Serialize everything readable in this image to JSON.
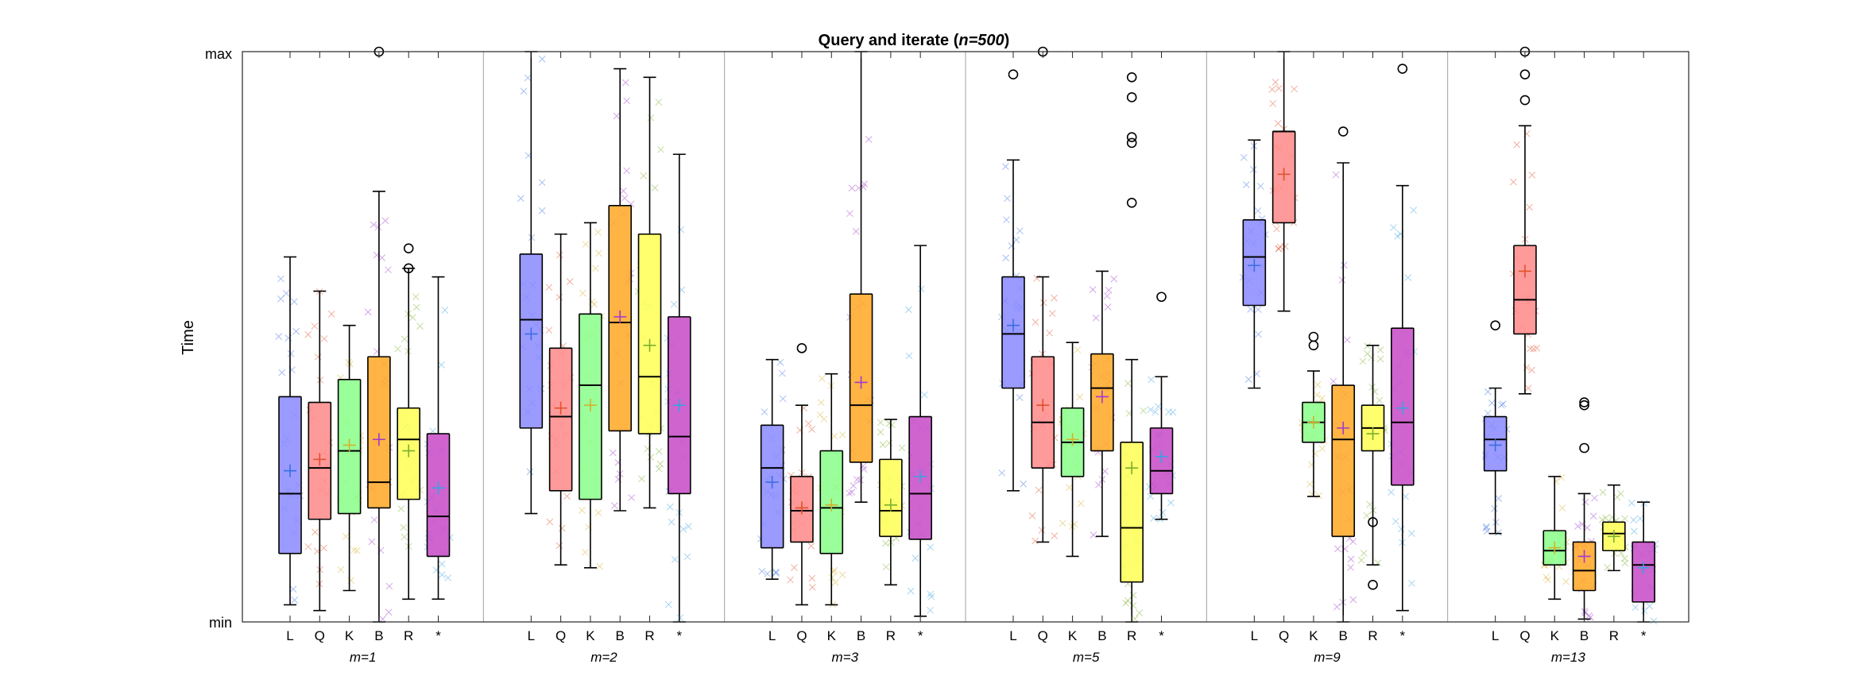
{
  "chart_data": {
    "type": "box",
    "title_prefix": "Query and iterate (",
    "title_italic": "n=500",
    "title_suffix": ")",
    "ylabel": "Time",
    "y_tick_labels": [
      "max",
      "min"
    ],
    "ylim": [
      0,
      1
    ],
    "grid": false,
    "categories": [
      "L",
      "Q",
      "K",
      "B",
      "R",
      "*"
    ],
    "colors": {
      "L": "#8c8cff",
      "Q": "#ff8c8c",
      "K": "#8cff8c",
      "B": "#ffaa2a",
      "R": "#ffff5a",
      "*": "#c84ec8"
    },
    "mean_marker_colors": {
      "L": "#3a6fe0",
      "Q": "#e0502a",
      "K": "#d4b02a",
      "B": "#a03acc",
      "R": "#7ab02a",
      "*": "#3aa0e0"
    },
    "groups": [
      {
        "label": "m=1",
        "boxes": [
          {
            "cat": "L",
            "wlo": 0.03,
            "q1": 0.12,
            "med": 0.225,
            "q3": 0.395,
            "whi": 0.64,
            "mean": 0.265,
            "outliers": []
          },
          {
            "cat": "Q",
            "wlo": 0.02,
            "q1": 0.18,
            "med": 0.27,
            "q3": 0.385,
            "whi": 0.58,
            "mean": 0.285,
            "outliers": []
          },
          {
            "cat": "K",
            "wlo": 0.055,
            "q1": 0.19,
            "med": 0.3,
            "q3": 0.425,
            "whi": 0.52,
            "mean": 0.31,
            "outliers": []
          },
          {
            "cat": "B",
            "wlo": 0.0,
            "q1": 0.2,
            "med": 0.245,
            "q3": 0.465,
            "whi": 0.755,
            "mean": 0.32,
            "outliers": [
              1.0
            ]
          },
          {
            "cat": "R",
            "wlo": 0.04,
            "q1": 0.215,
            "med": 0.32,
            "q3": 0.375,
            "whi": 0.62,
            "mean": 0.3,
            "outliers": [
              0.655,
              0.62
            ]
          },
          {
            "cat": "*",
            "wlo": 0.04,
            "q1": 0.115,
            "med": 0.185,
            "q3": 0.33,
            "whi": 0.605,
            "mean": 0.235,
            "outliers": []
          }
        ]
      },
      {
        "label": "m=2",
        "boxes": [
          {
            "cat": "L",
            "wlo": 0.19,
            "q1": 0.34,
            "med": 0.53,
            "q3": 0.645,
            "whi": 1.0,
            "mean": 0.505,
            "outliers": []
          },
          {
            "cat": "Q",
            "wlo": 0.1,
            "q1": 0.23,
            "med": 0.36,
            "q3": 0.48,
            "whi": 0.68,
            "mean": 0.375,
            "outliers": []
          },
          {
            "cat": "K",
            "wlo": 0.095,
            "q1": 0.215,
            "med": 0.415,
            "q3": 0.54,
            "whi": 0.7,
            "mean": 0.38,
            "outliers": []
          },
          {
            "cat": "B",
            "wlo": 0.195,
            "q1": 0.335,
            "med": 0.525,
            "q3": 0.73,
            "whi": 0.97,
            "mean": 0.535,
            "outliers": []
          },
          {
            "cat": "R",
            "wlo": 0.2,
            "q1": 0.33,
            "med": 0.43,
            "q3": 0.68,
            "whi": 0.955,
            "mean": 0.485,
            "outliers": []
          },
          {
            "cat": "*",
            "wlo": 0.0,
            "q1": 0.225,
            "med": 0.325,
            "q3": 0.535,
            "whi": 0.82,
            "mean": 0.38,
            "outliers": []
          }
        ]
      },
      {
        "label": "m=3",
        "boxes": [
          {
            "cat": "L",
            "wlo": 0.075,
            "q1": 0.13,
            "med": 0.27,
            "q3": 0.345,
            "whi": 0.46,
            "mean": 0.245,
            "outliers": []
          },
          {
            "cat": "Q",
            "wlo": 0.03,
            "q1": 0.14,
            "med": 0.195,
            "q3": 0.255,
            "whi": 0.38,
            "mean": 0.2,
            "outliers": [
              0.48
            ]
          },
          {
            "cat": "K",
            "wlo": 0.03,
            "q1": 0.12,
            "med": 0.2,
            "q3": 0.3,
            "whi": 0.435,
            "mean": 0.205,
            "outliers": []
          },
          {
            "cat": "B",
            "wlo": 0.21,
            "q1": 0.28,
            "med": 0.38,
            "q3": 0.575,
            "whi": 1.0,
            "mean": 0.42,
            "outliers": []
          },
          {
            "cat": "R",
            "wlo": 0.065,
            "q1": 0.15,
            "med": 0.195,
            "q3": 0.285,
            "whi": 0.355,
            "mean": 0.205,
            "outliers": []
          },
          {
            "cat": "*",
            "wlo": 0.01,
            "q1": 0.145,
            "med": 0.225,
            "q3": 0.36,
            "whi": 0.66,
            "mean": 0.255,
            "outliers": []
          }
        ]
      },
      {
        "label": "m=5",
        "boxes": [
          {
            "cat": "L",
            "wlo": 0.23,
            "q1": 0.41,
            "med": 0.505,
            "q3": 0.605,
            "whi": 0.81,
            "mean": 0.52,
            "outliers": [
              0.96
            ]
          },
          {
            "cat": "Q",
            "wlo": 0.14,
            "q1": 0.27,
            "med": 0.35,
            "q3": 0.465,
            "whi": 0.605,
            "mean": 0.38,
            "outliers": [
              1.0
            ]
          },
          {
            "cat": "K",
            "wlo": 0.115,
            "q1": 0.255,
            "med": 0.315,
            "q3": 0.375,
            "whi": 0.49,
            "mean": 0.32,
            "outliers": []
          },
          {
            "cat": "B",
            "wlo": 0.15,
            "q1": 0.3,
            "med": 0.41,
            "q3": 0.47,
            "whi": 0.615,
            "mean": 0.395,
            "outliers": []
          },
          {
            "cat": "R",
            "wlo": 0.0,
            "q1": 0.07,
            "med": 0.165,
            "q3": 0.315,
            "whi": 0.46,
            "mean": 0.27,
            "outliers": [
              0.955,
              0.92,
              0.85,
              0.84,
              0.735
            ]
          },
          {
            "cat": "*",
            "wlo": 0.18,
            "q1": 0.225,
            "med": 0.265,
            "q3": 0.34,
            "whi": 0.43,
            "mean": 0.29,
            "outliers": [
              0.57
            ]
          }
        ]
      },
      {
        "label": "m=9",
        "boxes": [
          {
            "cat": "L",
            "wlo": 0.41,
            "q1": 0.555,
            "med": 0.64,
            "q3": 0.705,
            "whi": 0.845,
            "mean": 0.625,
            "outliers": []
          },
          {
            "cat": "Q",
            "wlo": 0.545,
            "q1": 0.7,
            "med": 0.86,
            "q3": 0.86,
            "whi": 1.0,
            "mean": 0.785,
            "outliers": []
          },
          {
            "cat": "K",
            "wlo": 0.22,
            "q1": 0.315,
            "med": 0.35,
            "q3": 0.385,
            "whi": 0.44,
            "mean": 0.35,
            "outliers": [
              0.5,
              0.485
            ]
          },
          {
            "cat": "B",
            "wlo": 0.0,
            "q1": 0.15,
            "med": 0.32,
            "q3": 0.415,
            "whi": 0.805,
            "mean": 0.34,
            "outliers": [
              0.86
            ]
          },
          {
            "cat": "R",
            "wlo": 0.1,
            "q1": 0.3,
            "med": 0.34,
            "q3": 0.38,
            "whi": 0.485,
            "mean": 0.33,
            "outliers": [
              0.175,
              0.065
            ]
          },
          {
            "cat": "*",
            "wlo": 0.02,
            "q1": 0.24,
            "med": 0.35,
            "q3": 0.515,
            "whi": 0.765,
            "mean": 0.375,
            "outliers": [
              0.97
            ]
          }
        ]
      },
      {
        "label": "m=13",
        "boxes": [
          {
            "cat": "L",
            "wlo": 0.155,
            "q1": 0.265,
            "med": 0.32,
            "q3": 0.36,
            "whi": 0.41,
            "mean": 0.31,
            "outliers": [
              0.52
            ]
          },
          {
            "cat": "Q",
            "wlo": 0.4,
            "q1": 0.505,
            "med": 0.565,
            "q3": 0.66,
            "whi": 0.87,
            "mean": 0.615,
            "outliers": [
              1.0,
              0.96,
              0.915
            ]
          },
          {
            "cat": "K",
            "wlo": 0.04,
            "q1": 0.1,
            "med": 0.125,
            "q3": 0.16,
            "whi": 0.255,
            "mean": 0.13,
            "outliers": []
          },
          {
            "cat": "B",
            "wlo": 0.005,
            "q1": 0.055,
            "med": 0.09,
            "q3": 0.14,
            "whi": 0.225,
            "mean": 0.115,
            "outliers": [
              0.385,
              0.38,
              0.305
            ]
          },
          {
            "cat": "R",
            "wlo": 0.09,
            "q1": 0.125,
            "med": 0.155,
            "q3": 0.175,
            "whi": 0.24,
            "mean": 0.15,
            "outliers": []
          },
          {
            "cat": "*",
            "wlo": 0.0,
            "q1": 0.035,
            "med": 0.1,
            "q3": 0.14,
            "whi": 0.21,
            "mean": 0.095,
            "outliers": []
          }
        ]
      }
    ]
  }
}
